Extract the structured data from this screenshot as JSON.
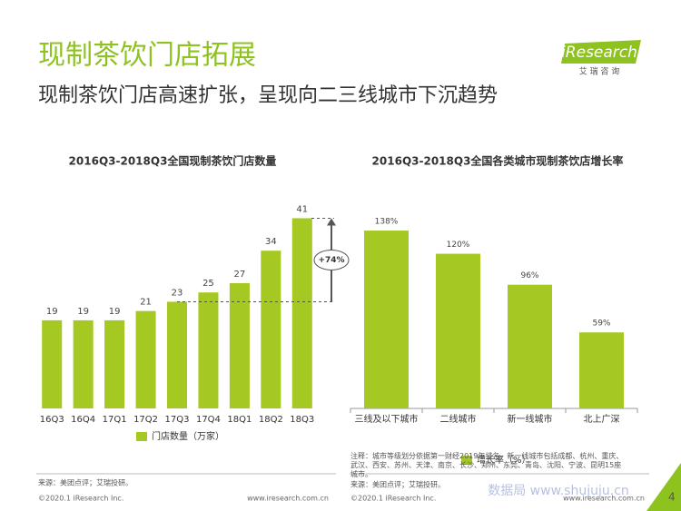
{
  "header": {
    "title": "现制茶饮门店拓展",
    "subtitle": "现制茶饮门店高速扩张，呈现向二三线城市下沉趋势",
    "logo": "iResearch",
    "logo_sub": "艾 瑞 咨 询"
  },
  "chart_data": [
    {
      "type": "bar",
      "title": "2016Q3-2018Q3全国现制茶饮门店数量",
      "categories": [
        "16Q3",
        "16Q4",
        "17Q1",
        "17Q2",
        "17Q3",
        "17Q4",
        "18Q1",
        "18Q2",
        "18Q3"
      ],
      "series": [
        {
          "name": "门店数量（万家）",
          "color": "#a5c823",
          "values": [
            19,
            19,
            19,
            21,
            23,
            25,
            27,
            34,
            41
          ]
        }
      ],
      "ylim": [
        0,
        45
      ],
      "annotation": "+74%"
    },
    {
      "type": "bar",
      "title": "2016Q3-2018Q3全国各类城市现制茶饮店增长率",
      "categories": [
        "三线及以下城市",
        "二线城市",
        "新一线城市",
        "北上广深"
      ],
      "series": [
        {
          "name": "增长率（%）",
          "color": "#a5c823",
          "values": [
            138,
            120,
            96,
            59
          ],
          "value_labels": [
            "138%",
            "120%",
            "96%",
            "59%"
          ]
        }
      ],
      "ylim": [
        0,
        150
      ]
    }
  ],
  "notes": {
    "left_source": "来源：美团点评；艾瑞投研。",
    "right_note": "注释：城市等级划分依据第一财经2019年排名，新一线城市包括成都、杭州、重庆、武汉、西安、苏州、天津、南京、长沙、郑州、东莞、青岛、沈阳、宁波、昆明15座城市。",
    "right_source": "来源：美团点评；艾瑞投研。"
  },
  "footer": {
    "left_copyright": "©2020.1 iResearch Inc.",
    "left_url": "www.iresearch.com.cn",
    "right_copyright": "©2020.1 iResearch Inc.",
    "right_url": "www.iresearch.com.cn",
    "page": "4",
    "watermark": "数据局 www.shujuju.cn"
  }
}
